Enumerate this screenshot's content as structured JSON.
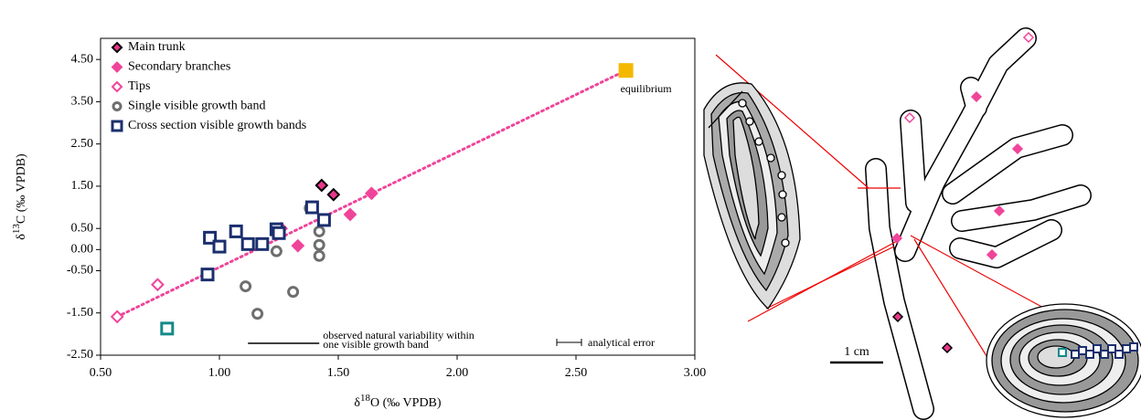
{
  "chart_data": {
    "type": "scatter",
    "x_label": [
      "δ",
      "18",
      "O (‰ VPDB)"
    ],
    "y_label": [
      "δ",
      "13",
      "C (‰ VPDB)"
    ],
    "xlim": [
      0.5,
      3.0
    ],
    "ylim": [
      -2.5,
      5.0
    ],
    "xticks": [
      {
        "value": 0.5,
        "label": "0.50"
      },
      {
        "value": 1.0,
        "label": "1.00"
      },
      {
        "value": 1.5,
        "label": "1.50"
      },
      {
        "value": 2.0,
        "label": "2.00"
      },
      {
        "value": 2.5,
        "label": "2.50"
      },
      {
        "value": 3.0,
        "label": "3.00"
      }
    ],
    "yticks": [
      {
        "value": 4.5,
        "label": "4.50"
      },
      {
        "value": 3.5,
        "label": "3.50"
      },
      {
        "value": 2.5,
        "label": "2.50"
      },
      {
        "value": 1.5,
        "label": "1.50"
      },
      {
        "value": 0.5,
        "label": "0.50"
      },
      {
        "value": 0.0,
        "label": "0.00"
      },
      {
        "value": -0.5,
        "label": "-0.50"
      },
      {
        "value": -1.5,
        "label": "-1.50"
      },
      {
        "value": -2.5,
        "label": "-2.50"
      }
    ],
    "legend": "top-left",
    "series": [
      {
        "name": "Main trunk",
        "marker": "diamond",
        "color": "#e8388a",
        "edge": "#000000",
        "x": [
          1.43,
          1.48
        ],
        "values": [
          1.52,
          1.3
        ]
      },
      {
        "name": "Secondary branches",
        "marker": "diamond",
        "color": "#f0449a",
        "edge": "#f0449a",
        "x": [
          1.64,
          1.55,
          1.26,
          1.33
        ],
        "values": [
          1.33,
          0.83,
          0.5,
          0.09
        ]
      },
      {
        "name": "Tips",
        "marker": "diamond-open",
        "color": "#f0449a",
        "x": [
          0.57,
          0.74
        ],
        "values": [
          -1.59,
          -0.83
        ]
      },
      {
        "name": "Single visible growth band",
        "marker": "circle-open",
        "color": "#6e6e6e",
        "x": [
          1.38,
          1.42,
          1.42,
          1.42,
          1.24,
          1.11,
          1.31,
          1.16
        ],
        "values": [
          0.98,
          0.43,
          0.11,
          -0.15,
          -0.04,
          -0.87,
          -1.0,
          -1.52
        ]
      },
      {
        "name": "Cross section visible growth bands",
        "marker": "square-open",
        "color": "#1b2f6e",
        "x": [
          0.96,
          1.0,
          1.07,
          1.12,
          1.18,
          1.24,
          1.25,
          1.39,
          1.44,
          0.95
        ],
        "values": [
          0.28,
          0.07,
          0.43,
          0.13,
          0.13,
          0.48,
          0.39,
          1.0,
          0.7,
          -0.59
        ]
      },
      {
        "marker": "square-open",
        "color": "#138a8a",
        "x": [
          0.78
        ],
        "values": [
          -1.87
        ]
      }
    ],
    "equilibrium": {
      "label": "equilibrium",
      "x": 2.71,
      "value": 4.24,
      "color": "#f5b800"
    },
    "trendline": {
      "color": "#f0449a",
      "x": [
        0.57,
        2.71
      ],
      "values": [
        -1.59,
        4.24
      ]
    },
    "variability": {
      "label": [
        "observed natural variability within",
        "one visible growth band"
      ],
      "x": [
        1.12,
        1.42
      ],
      "value": -2.22
    },
    "analytical_error": {
      "label": "analytical error"
    }
  },
  "diagram": {
    "scale_label": "1 cm"
  }
}
